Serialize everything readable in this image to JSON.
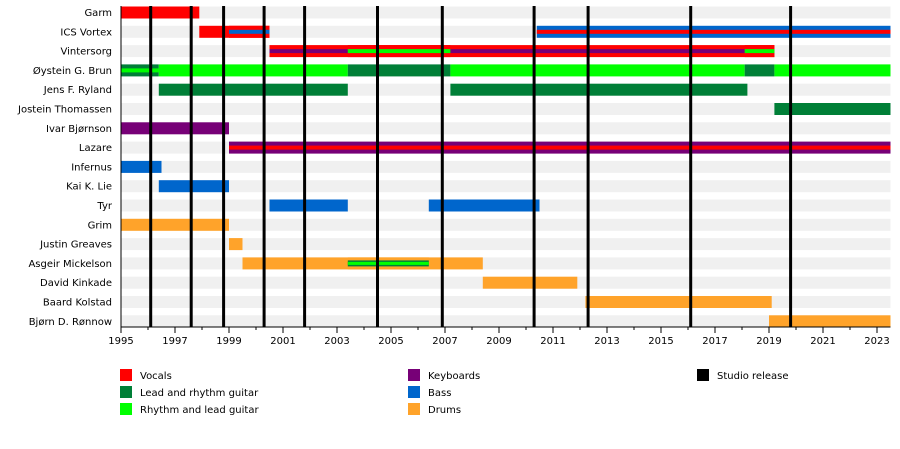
{
  "chart_data": {
    "type": "timeline",
    "title": "",
    "xlim": [
      1995,
      2023.5
    ],
    "x_ticks": [
      1995,
      1997,
      1999,
      2001,
      2003,
      2005,
      2007,
      2009,
      2011,
      2013,
      2015,
      2017,
      2019,
      2021,
      2023
    ],
    "members": [
      "Garm",
      "ICS Vortex",
      "Vintersorg",
      "Øystein G. Brun",
      "Jens F. Ryland",
      "Jostein Thomassen",
      "Ivar Bjørnson",
      "Lazare",
      "Infernus",
      "Kai K. Lie",
      "Tyr",
      "Grim",
      "Justin Greaves",
      "Asgeir Mickelson",
      "David Kinkade",
      "Baard Kolstad",
      "Bjørn D. Rønnow"
    ],
    "roles": {
      "vocals": {
        "label": "Vocals",
        "color": "#ff0000"
      },
      "lead": {
        "label": "Lead and rhythm guitar",
        "color": "#007f37"
      },
      "rhythm": {
        "label": "Rhythm and lead guitar",
        "color": "#00ff00"
      },
      "keys": {
        "label": "Keyboards",
        "color": "#770077"
      },
      "bass": {
        "label": "Bass",
        "color": "#0066cc"
      },
      "drums": {
        "label": "Drums",
        "color": "#ffa32a"
      },
      "release": {
        "label": "Studio release",
        "color": "#000000"
      }
    },
    "bars": [
      {
        "member": 0,
        "start": 1995,
        "end": 1997.9,
        "role": "vocals"
      },
      {
        "member": 1,
        "start": 1997.9,
        "end": 2000.5,
        "role": "vocals"
      },
      {
        "member": 1,
        "start": 1999.0,
        "end": 2000.5,
        "role": "vocals",
        "stripe": "bass"
      },
      {
        "member": 1,
        "start": 2010.4,
        "end": 2023.5,
        "role": "bass",
        "stripe": "vocals"
      },
      {
        "member": 2,
        "start": 2000.5,
        "end": 2019.2,
        "role": "vocals",
        "stripe": "keys"
      },
      {
        "member": 2,
        "start": 2003.4,
        "end": 2007.2,
        "role": "vocals",
        "stripe": "rhythm"
      },
      {
        "member": 2,
        "start": 2018.1,
        "end": 2019.2,
        "role": "vocals",
        "stripe": "rhythm"
      },
      {
        "member": 3,
        "start": 1995,
        "end": 1996.4,
        "role": "lead",
        "stripe": "rhythm"
      },
      {
        "member": 3,
        "start": 1996.4,
        "end": 2003.4,
        "role": "rhythm"
      },
      {
        "member": 3,
        "start": 2003.4,
        "end": 2007.2,
        "role": "lead"
      },
      {
        "member": 3,
        "start": 2007.2,
        "end": 2018.1,
        "role": "rhythm"
      },
      {
        "member": 3,
        "start": 2018.1,
        "end": 2019.2,
        "role": "lead"
      },
      {
        "member": 3,
        "start": 2019.2,
        "end": 2023.5,
        "role": "rhythm"
      },
      {
        "member": 4,
        "start": 1996.4,
        "end": 2003.4,
        "role": "lead"
      },
      {
        "member": 4,
        "start": 2007.2,
        "end": 2018.2,
        "role": "lead"
      },
      {
        "member": 5,
        "start": 2019.2,
        "end": 2023.5,
        "role": "lead"
      },
      {
        "member": 6,
        "start": 1995,
        "end": 1999.0,
        "role": "keys"
      },
      {
        "member": 7,
        "start": 1999.0,
        "end": 2023.5,
        "role": "keys",
        "stripe": "vocals"
      },
      {
        "member": 8,
        "start": 1995,
        "end": 1996.5,
        "role": "bass"
      },
      {
        "member": 9,
        "start": 1996.4,
        "end": 1999.0,
        "role": "bass"
      },
      {
        "member": 10,
        "start": 2000.5,
        "end": 2003.4,
        "role": "bass"
      },
      {
        "member": 10,
        "start": 2006.4,
        "end": 2010.5,
        "role": "bass"
      },
      {
        "member": 11,
        "start": 1995,
        "end": 1999.0,
        "role": "drums"
      },
      {
        "member": 12,
        "start": 1999.0,
        "end": 1999.5,
        "role": "drums"
      },
      {
        "member": 13,
        "start": 1999.5,
        "end": 2008.4,
        "role": "drums"
      },
      {
        "member": 13,
        "start": 2003.4,
        "end": 2006.4,
        "role": "drums",
        "stripe": "rhythm",
        "stripe_border": "lead"
      },
      {
        "member": 14,
        "start": 2008.4,
        "end": 2011.9,
        "role": "drums"
      },
      {
        "member": 15,
        "start": 2012.2,
        "end": 2019.1,
        "role": "drums"
      },
      {
        "member": 16,
        "start": 2019.0,
        "end": 2023.5,
        "role": "drums"
      }
    ],
    "releases": [
      1996.1,
      1997.6,
      1998.8,
      2000.3,
      2001.8,
      2004.5,
      2006.9,
      2010.3,
      2012.3,
      2016.1,
      2019.8
    ],
    "legend": [
      "vocals",
      "lead",
      "rhythm",
      "keys",
      "bass",
      "drums",
      "release"
    ],
    "legend_placement": "bottom"
  }
}
